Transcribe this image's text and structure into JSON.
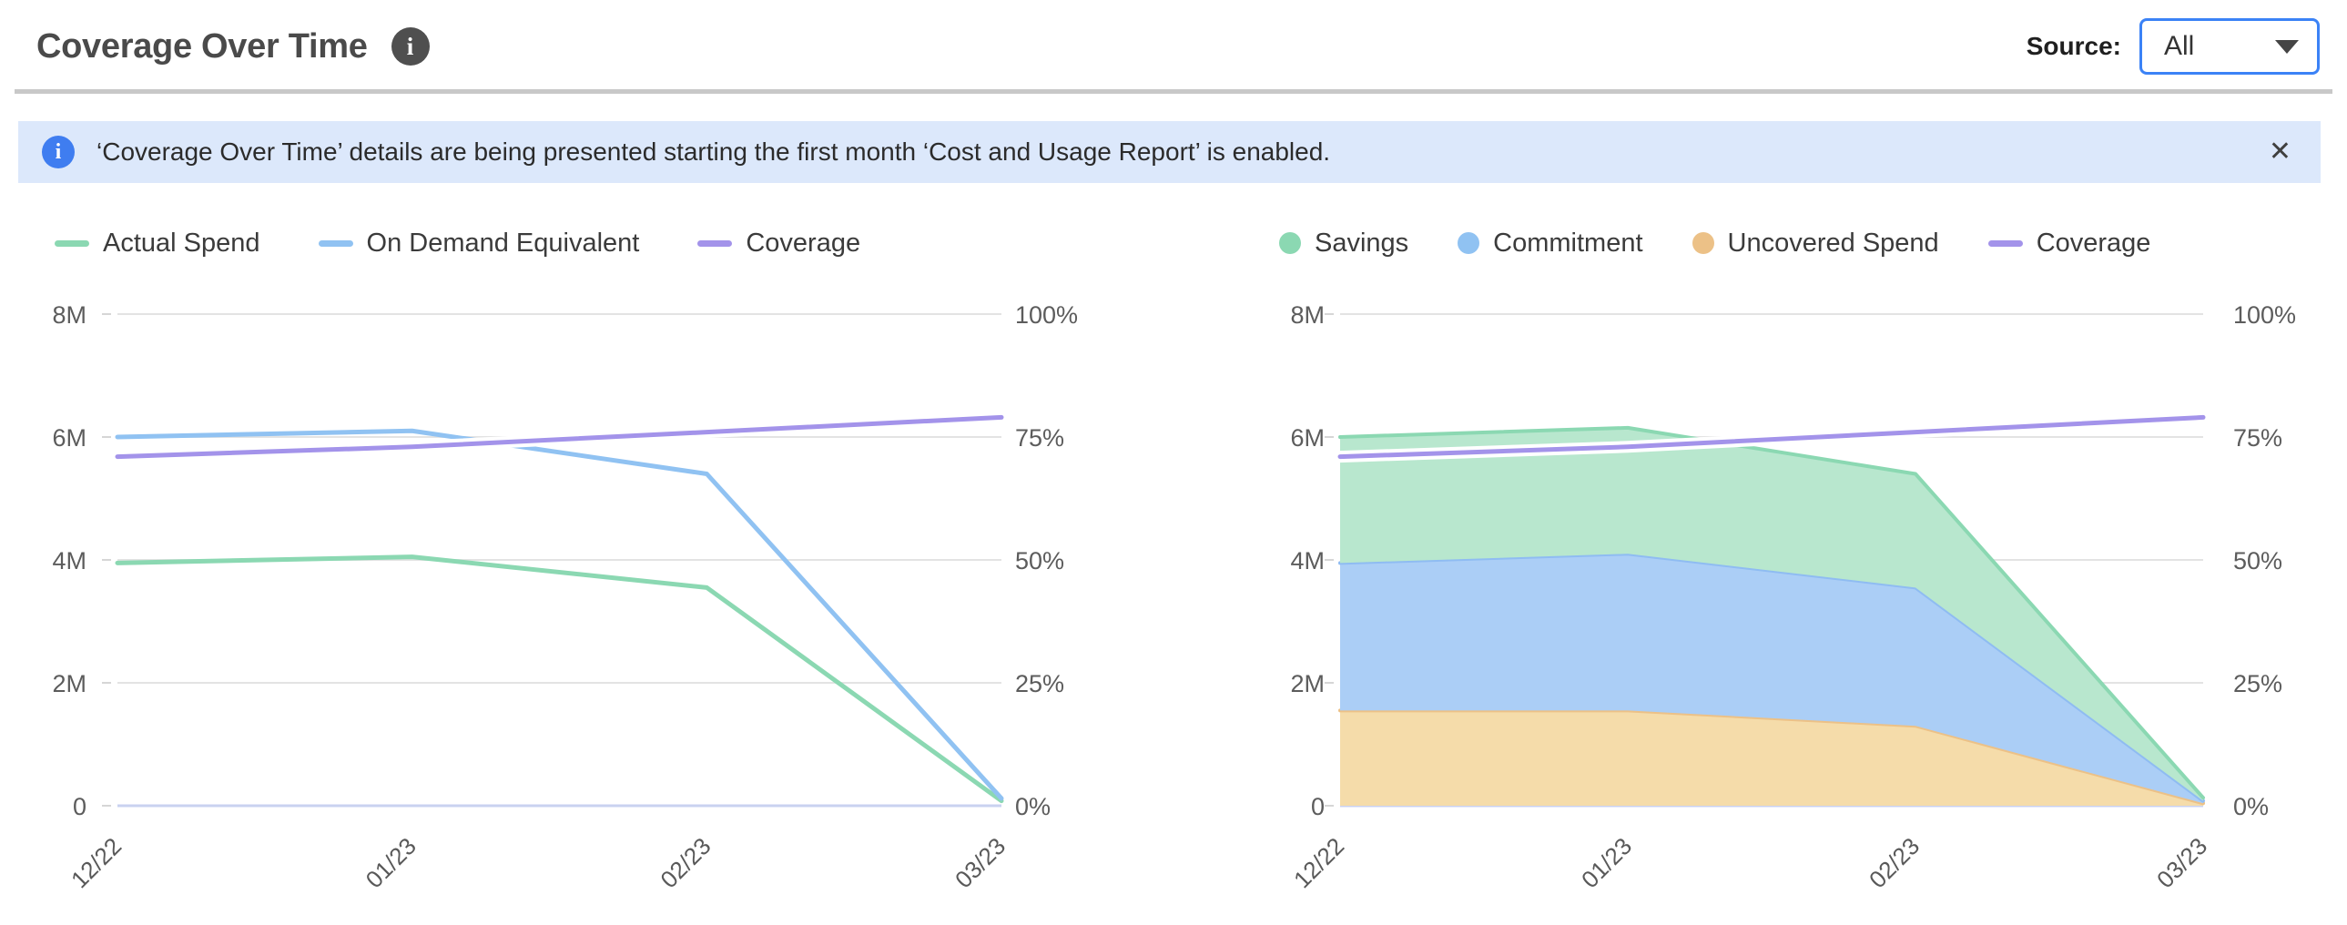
{
  "header": {
    "title": "Coverage Over Time",
    "info_glyph": "i",
    "source_label": "Source:",
    "source_value": "All"
  },
  "banner": {
    "icon_glyph": "i",
    "text": "‘Coverage Over Time’ details are being presented starting the first month ‘Cost and Usage Report’ is enabled.",
    "close_glyph": "✕"
  },
  "colors": {
    "accent_blue": "#3b82f6",
    "banner_bg": "#dce8fb",
    "banner_icon_bg": "#3f7df0",
    "divider": "#c8c8c8",
    "gridline": "#e3e3e3",
    "baseline": "#c9d2f0",
    "tick": "#d6d6d6",
    "green": "#8bd8b2",
    "blue": "#90c2f2",
    "purple": "#a393ea",
    "orange": "#ecc187",
    "green_fill": "#b8e7ce",
    "blue_fill": "#abcef6",
    "orange_fill": "#f5dcaa"
  },
  "chart_data": [
    {
      "type": "line",
      "categories": [
        "12/22",
        "01/23",
        "02/23",
        "03/23"
      ],
      "grid": true,
      "legend_position": "top",
      "left_axis": {
        "unit": "M",
        "min": 0,
        "max": 8,
        "label_ticks": [
          "8M",
          "6M",
          "4M",
          "2M",
          "0"
        ]
      },
      "right_axis": {
        "unit": "%",
        "min": 0,
        "max": 100,
        "label_ticks": [
          "100%",
          "75%",
          "50%",
          "25%",
          "0%"
        ]
      },
      "legend": [
        {
          "label": "Actual Spend",
          "swatch": "line",
          "color": "#8bd8b2"
        },
        {
          "label": "On Demand Equivalent",
          "swatch": "line",
          "color": "#90c2f2"
        },
        {
          "label": "Coverage",
          "swatch": "line",
          "color": "#a393ea"
        }
      ],
      "series": [
        {
          "name": "Actual Spend",
          "axis": "left",
          "color": "#8bd8b2",
          "values": [
            3.95,
            4.05,
            3.55,
            0.08
          ]
        },
        {
          "name": "On Demand Equivalent",
          "axis": "left",
          "color": "#90c2f2",
          "values": [
            6.0,
            6.1,
            5.4,
            0.12
          ]
        },
        {
          "name": "Coverage",
          "axis": "right",
          "color": "#a393ea",
          "halo": true,
          "values": [
            71,
            73,
            76,
            79
          ]
        }
      ]
    },
    {
      "type": "area",
      "categories": [
        "12/22",
        "01/23",
        "02/23",
        "03/23"
      ],
      "grid": true,
      "legend_position": "top",
      "left_axis": {
        "unit": "M",
        "min": 0,
        "max": 8,
        "label_ticks": [
          "8M",
          "6M",
          "4M",
          "2M",
          "0"
        ]
      },
      "right_axis": {
        "unit": "%",
        "min": 0,
        "max": 100,
        "label_ticks": [
          "100%",
          "75%",
          "50%",
          "25%",
          "0%"
        ]
      },
      "legend": [
        {
          "label": "Savings",
          "swatch": "dot",
          "color": "#8bd8b2"
        },
        {
          "label": "Commitment",
          "swatch": "dot",
          "color": "#90c2f2"
        },
        {
          "label": "Uncovered Spend",
          "swatch": "dot",
          "color": "#ecc187"
        },
        {
          "label": "Coverage",
          "swatch": "line",
          "color": "#a393ea"
        }
      ],
      "series": [
        {
          "name": "Uncovered Spend",
          "axis": "left",
          "stacked": true,
          "color": "#ecc187",
          "fill": "#f5dcaa",
          "values": [
            1.55,
            1.55,
            1.3,
            0.04
          ]
        },
        {
          "name": "Commitment",
          "axis": "left",
          "stacked": true,
          "color": "#8fbcf2",
          "fill": "#abcef6",
          "values": [
            2.4,
            2.55,
            2.25,
            0.04
          ]
        },
        {
          "name": "Savings",
          "axis": "left",
          "stacked": true,
          "color": "#8bd8b2",
          "fill": "#b8e7ce",
          "values": [
            2.05,
            2.05,
            1.85,
            0.05
          ]
        },
        {
          "name": "Coverage",
          "axis": "right",
          "color": "#a393ea",
          "halo": true,
          "values": [
            71,
            73,
            76,
            79
          ]
        }
      ]
    }
  ]
}
